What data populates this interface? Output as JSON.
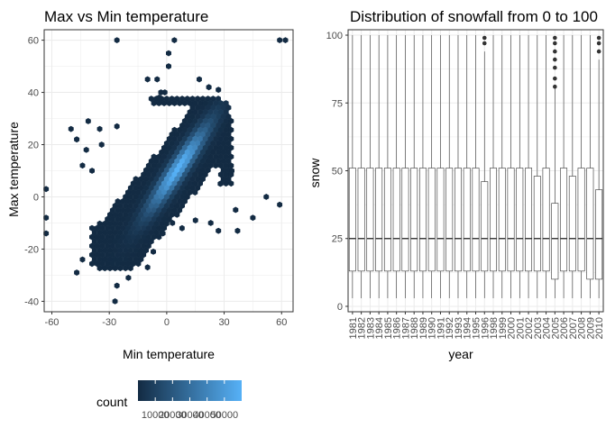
{
  "theme": {
    "panel_border": "#333333",
    "grid": "#ebebeb",
    "text": "#000000",
    "tick_text": "#4d4d4d",
    "hex_low": "#132b43",
    "hex_high": "#56b1f7",
    "box_fill": "#ffffff",
    "box_stroke": "#333333"
  },
  "chart_data": [
    {
      "type": "heatmap",
      "subtype": "hexbin",
      "title": "Max vs Min temperature",
      "xlabel": "Min temperature",
      "ylabel": "Max temperature",
      "xlim": [
        -64,
        66
      ],
      "ylim": [
        -44,
        64
      ],
      "x_ticks": [
        -60,
        -30,
        0,
        30,
        60
      ],
      "x_tick_labels": [
        "-60",
        "-30",
        "0",
        "30",
        "60"
      ],
      "y_ticks": [
        -40,
        -20,
        0,
        20,
        40,
        60
      ],
      "y_tick_labels": [
        "-40",
        "-20",
        "0",
        "20",
        "40",
        "60"
      ],
      "grid": true,
      "legend": {
        "title": "count",
        "position": "bottom",
        "min": 0,
        "max": 60000,
        "labels": [
          "10000",
          "20000",
          "30000",
          "40000",
          "50000"
        ],
        "label_values": [
          10000,
          20000,
          30000,
          40000,
          50000
        ]
      },
      "hex_radius": 3.3,
      "outliers": [
        [
          -26,
          60
        ],
        [
          4,
          60
        ],
        [
          59,
          60
        ],
        [
          62,
          60
        ],
        [
          1,
          55
        ],
        [
          1,
          50
        ],
        [
          -5,
          45
        ],
        [
          -10,
          45
        ],
        [
          -1,
          40
        ],
        [
          -3,
          40
        ],
        [
          -4,
          38
        ],
        [
          17,
          45
        ],
        [
          22,
          42
        ],
        [
          27,
          41
        ],
        [
          -41,
          29
        ],
        [
          -50,
          26
        ],
        [
          -35,
          26
        ],
        [
          -26,
          27
        ],
        [
          -47,
          22
        ],
        [
          -42,
          18
        ],
        [
          -34,
          20
        ],
        [
          -44,
          12
        ],
        [
          -39,
          10
        ],
        [
          -63,
          3
        ],
        [
          -63,
          -8
        ],
        [
          -63,
          -14
        ],
        [
          52,
          0
        ],
        [
          59,
          -3
        ],
        [
          45,
          -8
        ],
        [
          37,
          -13
        ],
        [
          -47,
          -29
        ],
        [
          -44,
          -24
        ],
        [
          -20,
          -31
        ],
        [
          -10,
          -27
        ],
        [
          -26,
          -34
        ],
        [
          -27,
          -40
        ],
        [
          -14,
          -22
        ],
        [
          -7,
          -21
        ],
        [
          -2,
          -14
        ],
        [
          3,
          -10
        ],
        [
          8,
          -12
        ],
        [
          15,
          -9
        ],
        [
          23,
          -10
        ],
        [
          27,
          -13
        ],
        [
          36,
          -5
        ],
        [
          28,
          5
        ],
        [
          34,
          10
        ]
      ]
    },
    {
      "type": "box",
      "title": "Distribution of snowfall from 0 to 100",
      "xlabel": "year",
      "ylabel": "snow",
      "ylim": [
        -2,
        102
      ],
      "y_ticks": [
        0,
        25,
        50,
        75,
        100
      ],
      "y_tick_labels": [
        "0",
        "25",
        "50",
        "75",
        "100"
      ],
      "grid": true,
      "categories": [
        "1981",
        "1982",
        "1983",
        "1984",
        "1985",
        "1986",
        "1987",
        "1988",
        "1989",
        "1990",
        "1991",
        "1992",
        "1993",
        "1994",
        "1995",
        "1996",
        "1998",
        "1999",
        "2000",
        "2001",
        "2002",
        "2003",
        "2004",
        "2005",
        "2006",
        "2007",
        "2008",
        "2009",
        "2010"
      ],
      "boxes": [
        {
          "min": 3,
          "q1": 13,
          "median": 25,
          "q3": 51,
          "max": 100,
          "outliers": []
        },
        {
          "min": 3,
          "q1": 13,
          "median": 25,
          "q3": 51,
          "max": 100,
          "outliers": []
        },
        {
          "min": 3,
          "q1": 13,
          "median": 25,
          "q3": 51,
          "max": 100,
          "outliers": []
        },
        {
          "min": 3,
          "q1": 13,
          "median": 25,
          "q3": 51,
          "max": 100,
          "outliers": []
        },
        {
          "min": 3,
          "q1": 13,
          "median": 25,
          "q3": 51,
          "max": 100,
          "outliers": []
        },
        {
          "min": 3,
          "q1": 13,
          "median": 25,
          "q3": 51,
          "max": 100,
          "outliers": []
        },
        {
          "min": 3,
          "q1": 13,
          "median": 25,
          "q3": 51,
          "max": 100,
          "outliers": []
        },
        {
          "min": 3,
          "q1": 13,
          "median": 25,
          "q3": 51,
          "max": 100,
          "outliers": []
        },
        {
          "min": 3,
          "q1": 13,
          "median": 25,
          "q3": 51,
          "max": 100,
          "outliers": []
        },
        {
          "min": 3,
          "q1": 13,
          "median": 25,
          "q3": 51,
          "max": 100,
          "outliers": []
        },
        {
          "min": 3,
          "q1": 13,
          "median": 25,
          "q3": 51,
          "max": 100,
          "outliers": []
        },
        {
          "min": 3,
          "q1": 13,
          "median": 25,
          "q3": 51,
          "max": 100,
          "outliers": []
        },
        {
          "min": 3,
          "q1": 13,
          "median": 25,
          "q3": 51,
          "max": 100,
          "outliers": []
        },
        {
          "min": 3,
          "q1": 13,
          "median": 25,
          "q3": 51,
          "max": 100,
          "outliers": []
        },
        {
          "min": 3,
          "q1": 13,
          "median": 25,
          "q3": 51,
          "max": 100,
          "outliers": []
        },
        {
          "min": 3,
          "q1": 13,
          "median": 25,
          "q3": 46,
          "max": 94,
          "outliers": [
            99,
            97
          ]
        },
        {
          "min": 3,
          "q1": 13,
          "median": 25,
          "q3": 51,
          "max": 100,
          "outliers": []
        },
        {
          "min": 3,
          "q1": 13,
          "median": 25,
          "q3": 51,
          "max": 100,
          "outliers": []
        },
        {
          "min": 3,
          "q1": 13,
          "median": 25,
          "q3": 51,
          "max": 100,
          "outliers": []
        },
        {
          "min": 3,
          "q1": 13,
          "median": 25,
          "q3": 51,
          "max": 100,
          "outliers": []
        },
        {
          "min": 3,
          "q1": 13,
          "median": 25,
          "q3": 51,
          "max": 100,
          "outliers": []
        },
        {
          "min": 3,
          "q1": 13,
          "median": 25,
          "q3": 48,
          "max": 100,
          "outliers": []
        },
        {
          "min": 3,
          "q1": 13,
          "median": 25,
          "q3": 51,
          "max": 100,
          "outliers": []
        },
        {
          "min": 3,
          "q1": 10,
          "median": 25,
          "q3": 38,
          "max": 81,
          "outliers": [
            99,
            97,
            94,
            91,
            88,
            84,
            81
          ]
        },
        {
          "min": 3,
          "q1": 13,
          "median": 25,
          "q3": 51,
          "max": 100,
          "outliers": []
        },
        {
          "min": 3,
          "q1": 13,
          "median": 25,
          "q3": 48,
          "max": 100,
          "outliers": []
        },
        {
          "min": 3,
          "q1": 13,
          "median": 25,
          "q3": 51,
          "max": 100,
          "outliers": []
        },
        {
          "min": 3,
          "q1": 10,
          "median": 25,
          "q3": 51,
          "max": 100,
          "outliers": []
        },
        {
          "min": 3,
          "q1": 10,
          "median": 25,
          "q3": 43,
          "max": 91,
          "outliers": [
            99,
            97,
            94
          ]
        }
      ]
    }
  ]
}
